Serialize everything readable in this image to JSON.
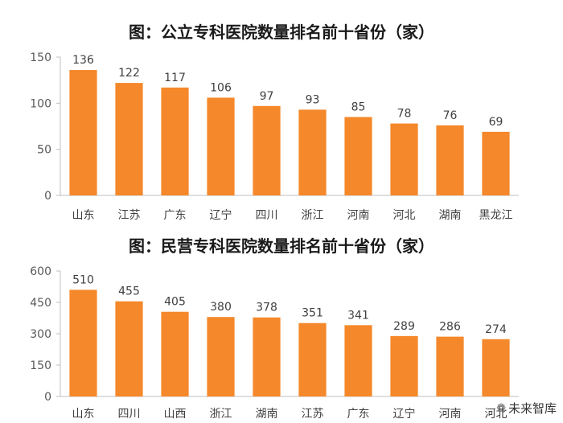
{
  "chart_data": [
    {
      "type": "bar",
      "title": "图：公立专科医院数量排名前十省份（家）",
      "categories": [
        "山东",
        "江苏",
        "广东",
        "辽宁",
        "四川",
        "浙江",
        "河南",
        "河北",
        "湖南",
        "黑龙江"
      ],
      "values": [
        136,
        122,
        117,
        106,
        97,
        93,
        85,
        78,
        76,
        69
      ],
      "yticks": [
        0,
        50,
        100,
        150
      ],
      "ylim": [
        0,
        150
      ],
      "color": "#F5882A",
      "grid": false,
      "legend": "none"
    },
    {
      "type": "bar",
      "title": "图：民营专科医院数量排名前十省份（家）",
      "categories": [
        "山东",
        "四川",
        "山西",
        "浙江",
        "湖南",
        "江苏",
        "广东",
        "辽宁",
        "河南",
        "河北"
      ],
      "values": [
        510,
        455,
        405,
        380,
        378,
        351,
        341,
        289,
        286,
        274
      ],
      "yticks": [
        0,
        150,
        300,
        450,
        600
      ],
      "ylim": [
        0,
        600
      ],
      "color": "#F5882A",
      "grid": false,
      "legend": "none"
    }
  ],
  "watermark": {
    "icon": "wechat-icon",
    "text": "未来智库"
  }
}
